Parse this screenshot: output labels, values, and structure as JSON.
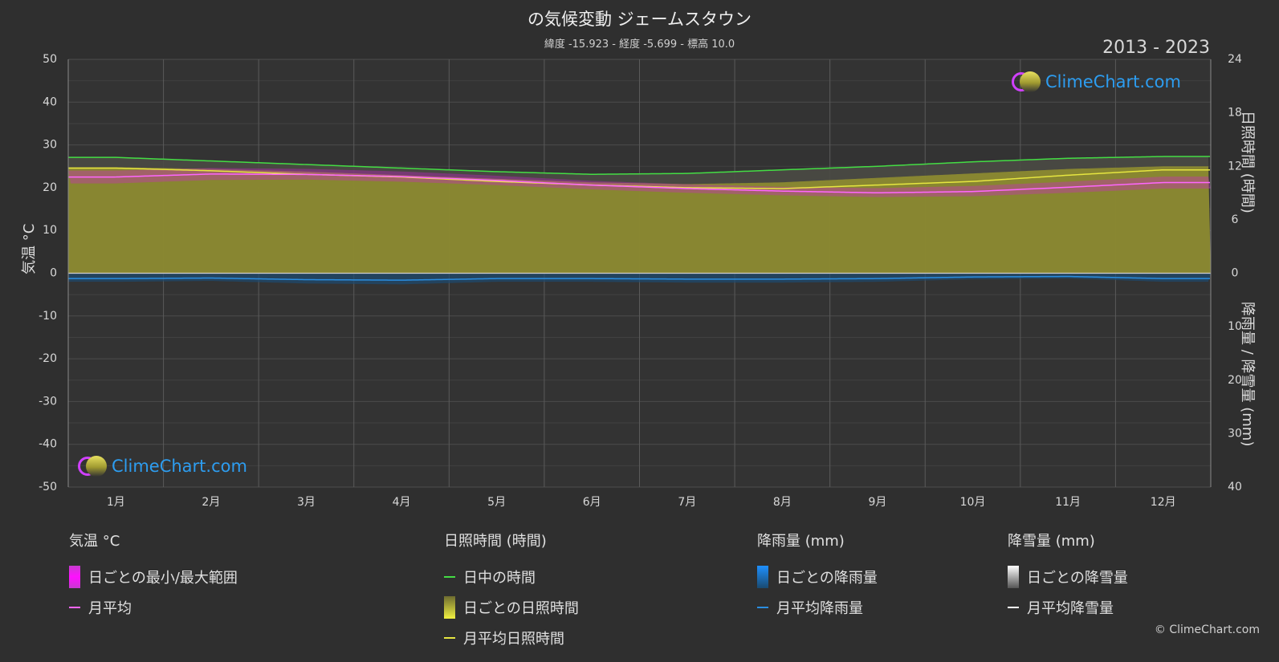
{
  "header": {
    "title": "の気候変動 ジェームスタウン",
    "subtitle": "緯度 -15.923 - 経度 -5.699 - 標高 10.0",
    "years": "2013 - 2023"
  },
  "axes": {
    "left_label": "気温 °C",
    "right_top_label": "日照時間 (時間)",
    "right_bottom_label": "降雨量 / 降雪量 (mm)"
  },
  "logo_text": "ClimeChart.com",
  "copyright": "© ClimeChart.com",
  "legend": {
    "temp": {
      "heading": "気温 °C",
      "range": "日ごとの最小/最大範囲",
      "avg": "月平均"
    },
    "sun": {
      "heading": "日照時間 (時間)",
      "daylight": "日中の時間",
      "daily": "日ごとの日照時間",
      "avg": "月平均日照時間"
    },
    "rain": {
      "heading": "降雨量 (mm)",
      "daily": "日ごとの降雨量",
      "avg": "月平均降雨量"
    },
    "snow": {
      "heading": "降雪量 (mm)",
      "daily": "日ごとの降雪量",
      "avg": "月平均降雪量"
    }
  },
  "colors": {
    "background": "#2f2f2f",
    "daylight": "#44dd44",
    "sunshine_fill": "#8c8a30",
    "sunshine_line": "#e6e640",
    "temp_range": "#d020d0",
    "temp_avg": "#ff66ff",
    "rain": "#1e7fd0",
    "rain_avg": "#2a8ee0",
    "snow": "#ffffff"
  },
  "chart_data": {
    "type": "line",
    "categories": [
      "1月",
      "2月",
      "3月",
      "4月",
      "5月",
      "6月",
      "7月",
      "8月",
      "9月",
      "10月",
      "11月",
      "12月"
    ],
    "y_left": {
      "label": "気温 °C",
      "range": [
        -50,
        50
      ],
      "ticks": [
        50,
        40,
        30,
        20,
        10,
        0,
        -10,
        -20,
        -30,
        -40,
        -50
      ]
    },
    "y_right_sun": {
      "label": "日照時間 (時間)",
      "range": [
        0,
        24
      ],
      "ticks": [
        24,
        18,
        12,
        6,
        0
      ]
    },
    "y_right_precip": {
      "label": "降雨量 / 降雪量 (mm)",
      "range": [
        0,
        40
      ],
      "ticks": [
        0,
        10,
        20,
        30,
        40
      ]
    },
    "series": [
      {
        "name": "日中の時間",
        "axis": "sun",
        "values": [
          13.0,
          12.6,
          12.2,
          11.8,
          11.4,
          11.1,
          11.2,
          11.6,
          12.0,
          12.5,
          12.9,
          13.1
        ]
      },
      {
        "name": "月平均日照時間",
        "axis": "sun",
        "values": [
          11.8,
          11.5,
          11.1,
          10.8,
          10.3,
          9.9,
          9.6,
          9.5,
          9.9,
          10.3,
          11.0,
          11.6
        ]
      },
      {
        "name": "日ごとの日照時間",
        "axis": "sun",
        "values": [
          11.9,
          11.7,
          11.4,
          11.0,
          10.6,
          10.2,
          10.0,
          10.2,
          10.7,
          11.2,
          11.7,
          12.0
        ]
      },
      {
        "name": "日ごとの最小/最大範囲 (max)",
        "axis": "temp",
        "values": [
          24.0,
          24.6,
          24.4,
          23.8,
          22.8,
          21.6,
          20.8,
          20.2,
          19.9,
          20.4,
          21.4,
          22.6
        ]
      },
      {
        "name": "日ごとの最小/最大範囲 (min)",
        "axis": "temp",
        "values": [
          21.0,
          21.8,
          21.9,
          21.4,
          20.6,
          19.6,
          18.8,
          18.2,
          17.8,
          18.0,
          18.8,
          19.8
        ]
      },
      {
        "name": "月平均",
        "axis": "temp",
        "values": [
          22.5,
          23.2,
          23.1,
          22.6,
          21.7,
          20.6,
          19.8,
          19.2,
          18.8,
          19.1,
          20.1,
          21.2
        ]
      },
      {
        "name": "月平均降雨量",
        "axis": "precip",
        "values": [
          1.0,
          0.9,
          1.2,
          1.3,
          1.0,
          1.0,
          1.1,
          1.1,
          1.0,
          0.7,
          0.6,
          1.0
        ]
      },
      {
        "name": "月平均降雪量",
        "axis": "precip",
        "values": [
          0,
          0,
          0,
          0,
          0,
          0,
          0,
          0,
          0,
          0,
          0,
          0
        ]
      }
    ]
  }
}
